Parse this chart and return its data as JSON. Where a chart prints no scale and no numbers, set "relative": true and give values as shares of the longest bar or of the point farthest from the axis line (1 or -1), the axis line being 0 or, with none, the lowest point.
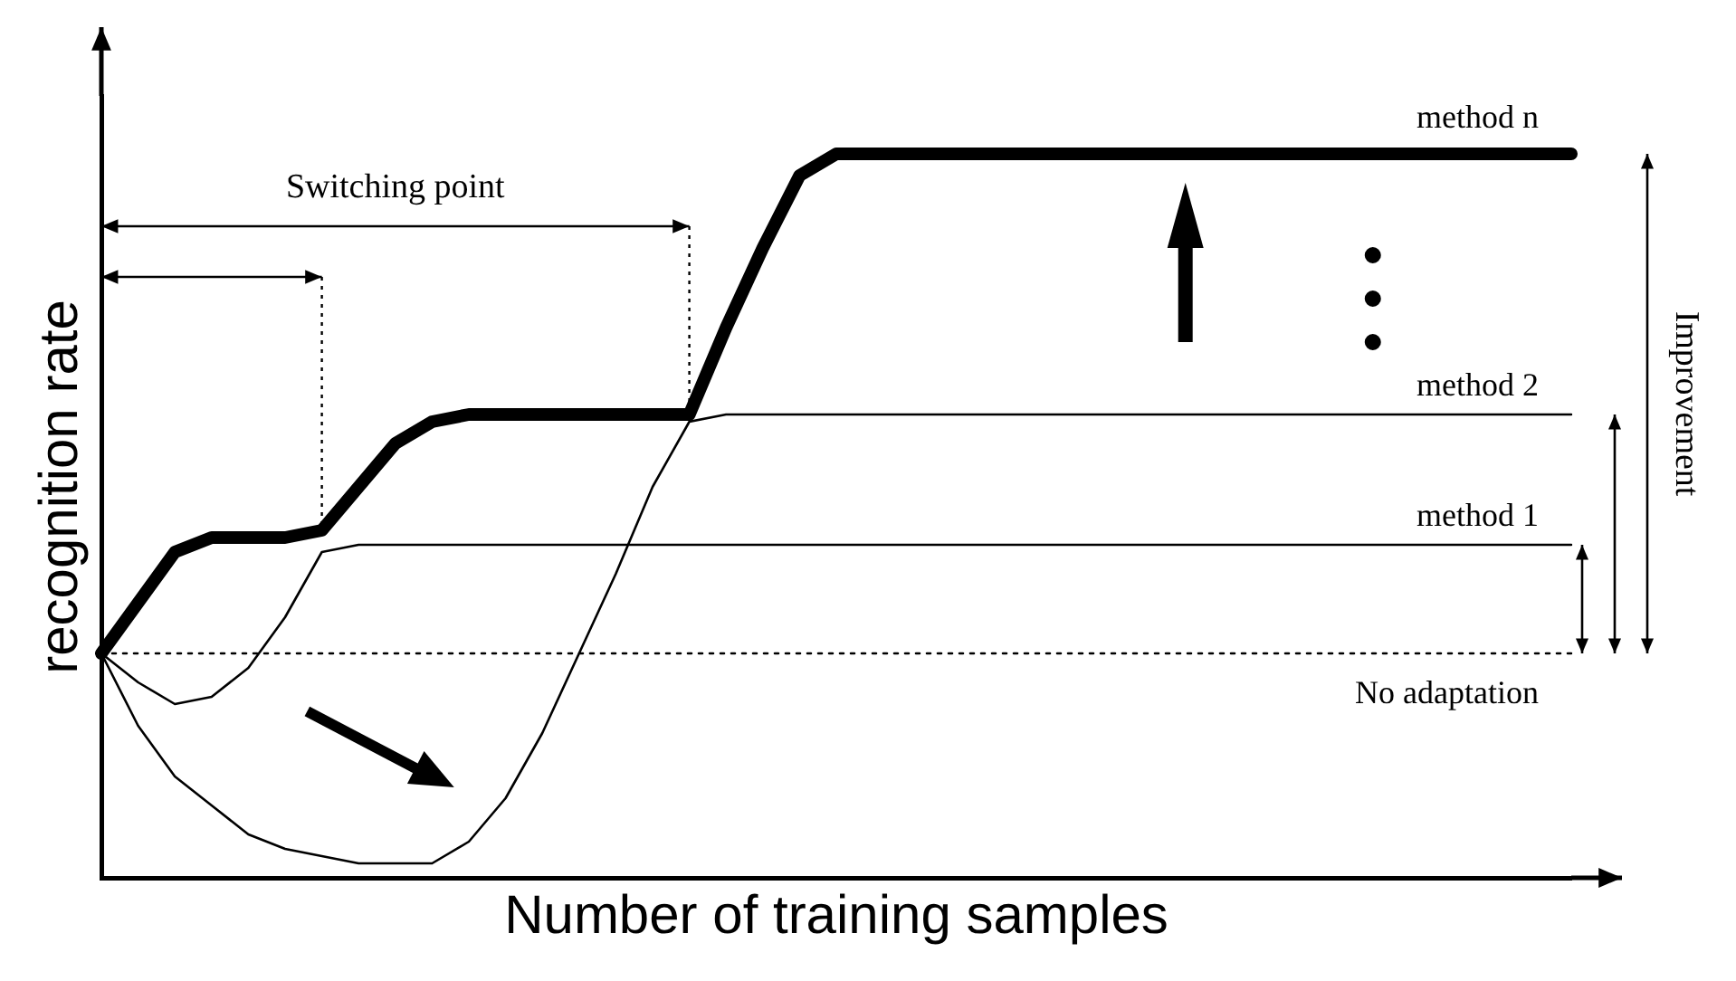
{
  "chart_data": {
    "type": "line",
    "xlabel": "Number of training samples",
    "ylabel": "recognition rate",
    "relative": true,
    "legend": false,
    "grid": false,
    "marker": "none",
    "tick_labels": false,
    "categories": [
      null,
      null,
      null,
      null,
      null,
      null,
      null,
      null,
      null,
      null,
      null,
      null,
      null,
      null,
      null,
      null,
      null,
      null,
      null,
      null,
      null,
      null,
      null,
      null,
      null,
      null,
      null,
      null,
      null,
      null,
      null,
      null,
      null,
      null,
      null,
      null,
      null,
      null,
      null,
      null,
      null
    ],
    "annotations": [
      "Switching point",
      "Improvement"
    ],
    "series": [
      {
        "name": "method n",
        "color": "#000000",
        "values": [
          0.31,
          0.38,
          0.45,
          0.47,
          0.47,
          0.47,
          0.48,
          0.54,
          0.6,
          0.63,
          0.64,
          0.64,
          0.64,
          0.64,
          0.64,
          0.64,
          0.64,
          0.76,
          0.87,
          0.97,
          1,
          1,
          1,
          1,
          1,
          1,
          1,
          1,
          1,
          1,
          1,
          1,
          1,
          1,
          1,
          1,
          1,
          1,
          1,
          1,
          1
        ]
      },
      {
        "name": "method 2",
        "color": "#000000",
        "values": [
          0.31,
          0.21,
          0.14,
          0.1,
          0.06,
          0.04,
          0.03,
          0.02,
          0.02,
          0.02,
          0.05,
          0.11,
          0.2,
          0.31,
          0.42,
          0.54,
          0.63,
          0.64,
          0.64,
          0.64,
          0.64,
          0.64,
          0.64,
          0.64,
          0.64,
          0.64,
          0.64,
          0.64,
          0.64,
          0.64,
          0.64,
          0.64,
          0.64,
          0.64,
          0.64,
          0.64,
          0.64,
          0.64,
          0.64,
          0.64,
          0.64
        ]
      },
      {
        "name": "method 1",
        "color": "#000000",
        "values": [
          0.31,
          0.27,
          0.24,
          0.25,
          0.29,
          0.36,
          0.45,
          0.46,
          0.46,
          0.46,
          0.46,
          0.46,
          0.46,
          0.46,
          0.46,
          0.46,
          0.46,
          0.46,
          0.46,
          0.46,
          0.46,
          0.46,
          0.46,
          0.46,
          0.46,
          0.46,
          0.46,
          0.46,
          0.46,
          0.46,
          0.46,
          0.46,
          0.46,
          0.46,
          0.46,
          0.46,
          0.46,
          0.46,
          0.46,
          0.46,
          0.46
        ]
      },
      {
        "name": "No adaptation",
        "color": "#000000",
        "line_style": "dotted",
        "values": [
          0.31,
          0.31,
          0.31,
          0.31,
          0.31,
          0.31,
          0.31,
          0.31,
          0.31,
          0.31,
          0.31,
          0.31,
          0.31,
          0.31,
          0.31,
          0.31,
          0.31,
          0.31,
          0.31,
          0.31,
          0.31,
          0.31,
          0.31,
          0.31,
          0.31,
          0.31,
          0.31,
          0.31,
          0.31,
          0.31,
          0.31,
          0.31,
          0.31,
          0.31,
          0.31,
          0.31,
          0.31,
          0.31,
          0.31,
          0.31,
          0.31
        ]
      }
    ]
  }
}
